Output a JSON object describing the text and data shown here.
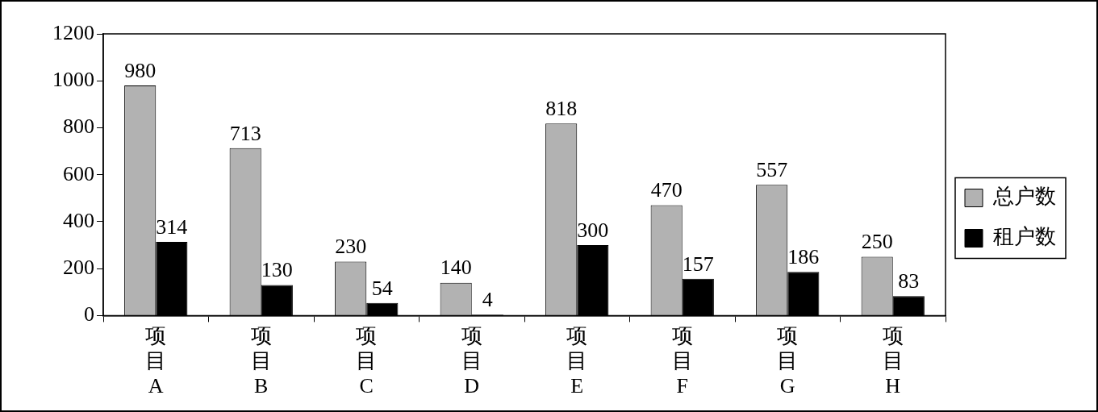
{
  "chart_data": {
    "type": "bar",
    "categories": [
      "项目A",
      "项目B",
      "项目C",
      "项目D",
      "项目E",
      "项目F",
      "项目G",
      "项目H"
    ],
    "series": [
      {
        "name": "总户数",
        "color": "#b2b2b2",
        "values": [
          980,
          713,
          230,
          140,
          818,
          470,
          557,
          250
        ]
      },
      {
        "name": "租户数",
        "color": "#000000",
        "values": [
          314,
          130,
          54,
          4,
          300,
          157,
          186,
          83
        ]
      }
    ],
    "ylim": [
      0,
      1200
    ],
    "yticks": [
      0,
      200,
      400,
      600,
      800,
      1000,
      1200
    ],
    "grid": false,
    "legend": "right",
    "data_labels": true
  }
}
